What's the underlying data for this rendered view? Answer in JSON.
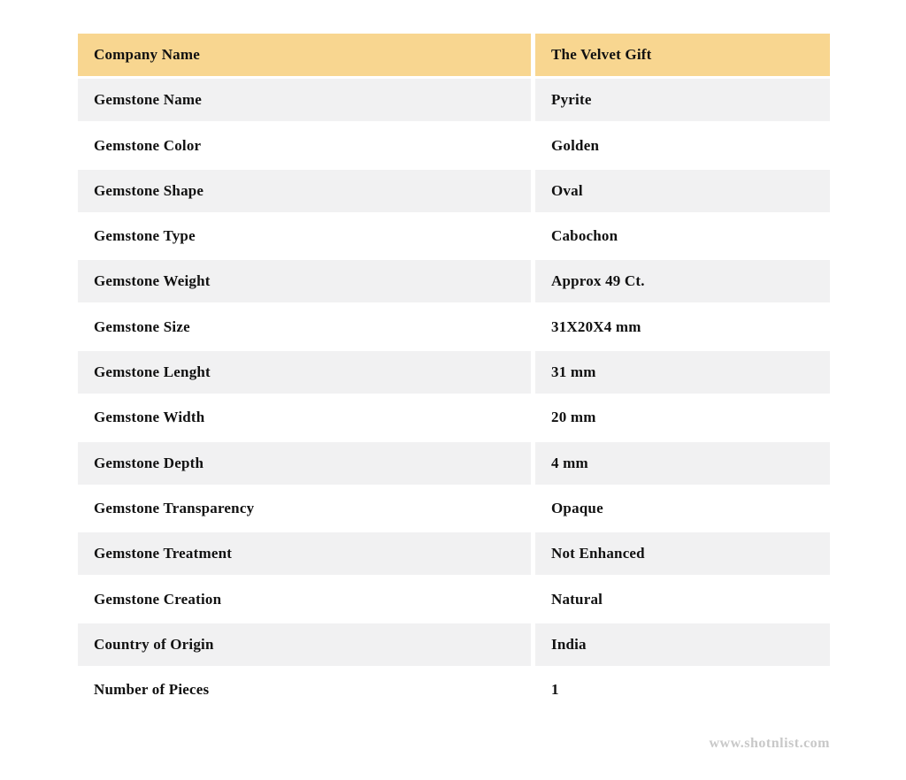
{
  "table": {
    "rows": [
      {
        "label": "Company Name",
        "value": "The Velvet Gift"
      },
      {
        "label": "Gemstone Name",
        "value": "Pyrite"
      },
      {
        "label": "Gemstone Color",
        "value": "Golden"
      },
      {
        "label": "Gemstone Shape",
        "value": "Oval"
      },
      {
        "label": "Gemstone Type",
        "value": "Cabochon"
      },
      {
        "label": "Gemstone Weight",
        "value": "Approx 49 Ct."
      },
      {
        "label": "Gemstone Size",
        "value": "31X20X4 mm"
      },
      {
        "label": "Gemstone Lenght",
        "value": "31 mm"
      },
      {
        "label": "Gemstone Width",
        "value": "20 mm"
      },
      {
        "label": "Gemstone Depth",
        "value": "4 mm"
      },
      {
        "label": "Gemstone Transparency",
        "value": "Opaque"
      },
      {
        "label": "Gemstone Treatment",
        "value": "Not Enhanced"
      },
      {
        "label": "Gemstone Creation",
        "value": "Natural"
      },
      {
        "label": "Country of Origin",
        "value": "India"
      },
      {
        "label": "Number of Pieces",
        "value": "1"
      }
    ]
  },
  "watermark": {
    "text": "www.shotnlist.com"
  },
  "colors": {
    "header_bg": "#F8D690",
    "stripe_bg": "#F1F1F2",
    "plain_bg": "#FFFFFF",
    "text": "#111111",
    "watermark_text": "#C8C8C8"
  }
}
